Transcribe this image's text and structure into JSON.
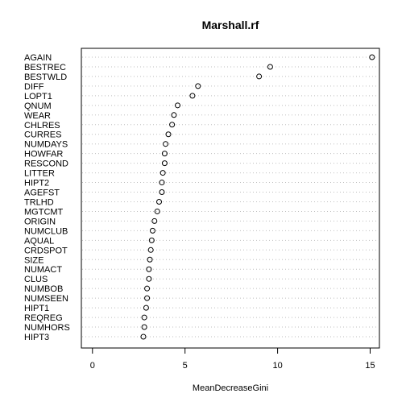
{
  "chart_data": {
    "type": "scatter",
    "title": "Marshall.rf",
    "xlabel": "MeanDecreaseGini",
    "ylabel": "",
    "xlim": [
      -0.6,
      15.5
    ],
    "xticks": [
      0,
      5,
      10,
      15
    ],
    "grid": "horizontal dotted",
    "variables": [
      {
        "name": "AGAIN",
        "value": 15.1
      },
      {
        "name": "BESTREC",
        "value": 9.6
      },
      {
        "name": "BESTWLD",
        "value": 9.0
      },
      {
        "name": "DIFF",
        "value": 5.7
      },
      {
        "name": "LOPT1",
        "value": 5.4
      },
      {
        "name": "QNUM",
        "value": 4.6
      },
      {
        "name": "WEAR",
        "value": 4.4
      },
      {
        "name": "CHLRES",
        "value": 4.3
      },
      {
        "name": "CURRES",
        "value": 4.1
      },
      {
        "name": "NUMDAYS",
        "value": 3.95
      },
      {
        "name": "HOWFAR",
        "value": 3.9
      },
      {
        "name": "RESCOND",
        "value": 3.9
      },
      {
        "name": "LITTER",
        "value": 3.8
      },
      {
        "name": "HIPT2",
        "value": 3.75
      },
      {
        "name": "AGEFST",
        "value": 3.75
      },
      {
        "name": "TRLHD",
        "value": 3.6
      },
      {
        "name": "MGTCMT",
        "value": 3.5
      },
      {
        "name": "ORIGIN",
        "value": 3.35
      },
      {
        "name": "NUMCLUB",
        "value": 3.25
      },
      {
        "name": "AQUAL",
        "value": 3.2
      },
      {
        "name": "CRDSPOT",
        "value": 3.15
      },
      {
        "name": "SIZE",
        "value": 3.1
      },
      {
        "name": "NUMACT",
        "value": 3.05
      },
      {
        "name": "CLUS",
        "value": 3.05
      },
      {
        "name": "NUMBOB",
        "value": 2.95
      },
      {
        "name": "NUMSEEN",
        "value": 2.95
      },
      {
        "name": "HIPT1",
        "value": 2.9
      },
      {
        "name": "REQREG",
        "value": 2.8
      },
      {
        "name": "NUMHORS",
        "value": 2.8
      },
      {
        "name": "HIPT3",
        "value": 2.75
      }
    ]
  }
}
